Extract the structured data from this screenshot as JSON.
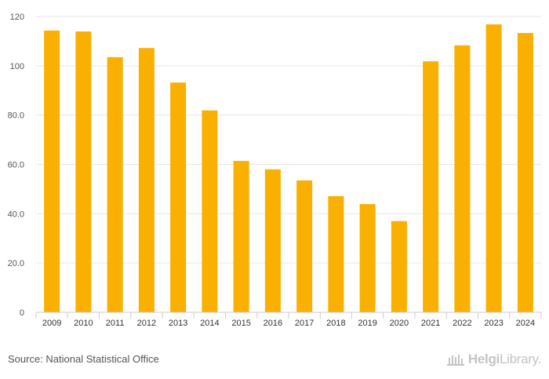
{
  "chart_data": {
    "type": "bar",
    "categories": [
      "2009",
      "2010",
      "2011",
      "2012",
      "2013",
      "2014",
      "2015",
      "2016",
      "2017",
      "2018",
      "2019",
      "2020",
      "2021",
      "2022",
      "2023",
      "2024"
    ],
    "values": [
      114.3,
      113.9,
      103.5,
      107.2,
      93.2,
      81.9,
      61.4,
      58.0,
      53.5,
      47.1,
      43.9,
      37.0,
      101.8,
      108.3,
      116.8,
      113.3
    ],
    "ylim": [
      0,
      120
    ],
    "yticks": [
      0,
      20,
      40,
      60,
      80,
      100,
      120
    ],
    "ytick_labels": [
      "0",
      "20.0",
      "40.0",
      "60.0",
      "80.0",
      "100",
      "120"
    ],
    "title": "",
    "xlabel": "",
    "ylabel": "",
    "bar_color": "#f9b000"
  },
  "footer": {
    "source": "Source: National Statistical Office",
    "logo_part1": "Helgi",
    "logo_part2": "Library."
  }
}
